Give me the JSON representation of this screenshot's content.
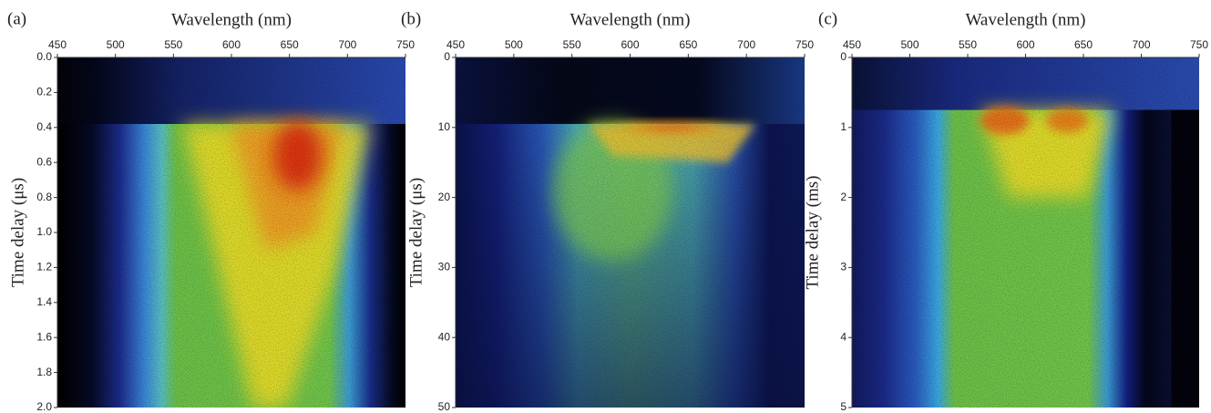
{
  "chart_data": [
    {
      "type": "heatmap",
      "panel_label": "(a)",
      "xlabel": "Wavelength (nm)",
      "ylabel": "Time delay (μs)",
      "xlim": [
        450,
        750
      ],
      "xticks": [
        450,
        500,
        550,
        600,
        650,
        700,
        750
      ],
      "ylim": [
        0,
        2
      ],
      "invert_y": true,
      "yticks": [
        {
          "value": 0,
          "label": "0.0"
        },
        0.2,
        0.4,
        0.6,
        0.8,
        {
          "value": 1,
          "label": "1.0"
        },
        1.2,
        1.4,
        1.6,
        1.8,
        {
          "value": 2,
          "label": "2.0"
        }
      ]
    },
    {
      "type": "heatmap",
      "panel_label": "(b)",
      "xlabel": "Wavelength (nm)",
      "ylabel": "Time delay (μs)",
      "xlim": [
        450,
        750
      ],
      "xticks": [
        450,
        500,
        550,
        600,
        650,
        700,
        750
      ],
      "ylim": [
        0,
        50
      ],
      "invert_y": true,
      "yticks": [
        0,
        10,
        20,
        30,
        40,
        50
      ]
    },
    {
      "type": "heatmap",
      "panel_label": "(c)",
      "xlabel": "Wavelength (nm)",
      "ylabel": "Time delay (ms)",
      "xlim": [
        450,
        750
      ],
      "xticks": [
        450,
        500,
        550,
        600,
        650,
        700,
        750
      ],
      "ylim": [
        0,
        5
      ],
      "invert_y": true,
      "yticks": [
        0,
        1,
        2,
        3,
        4,
        5
      ]
    }
  ]
}
